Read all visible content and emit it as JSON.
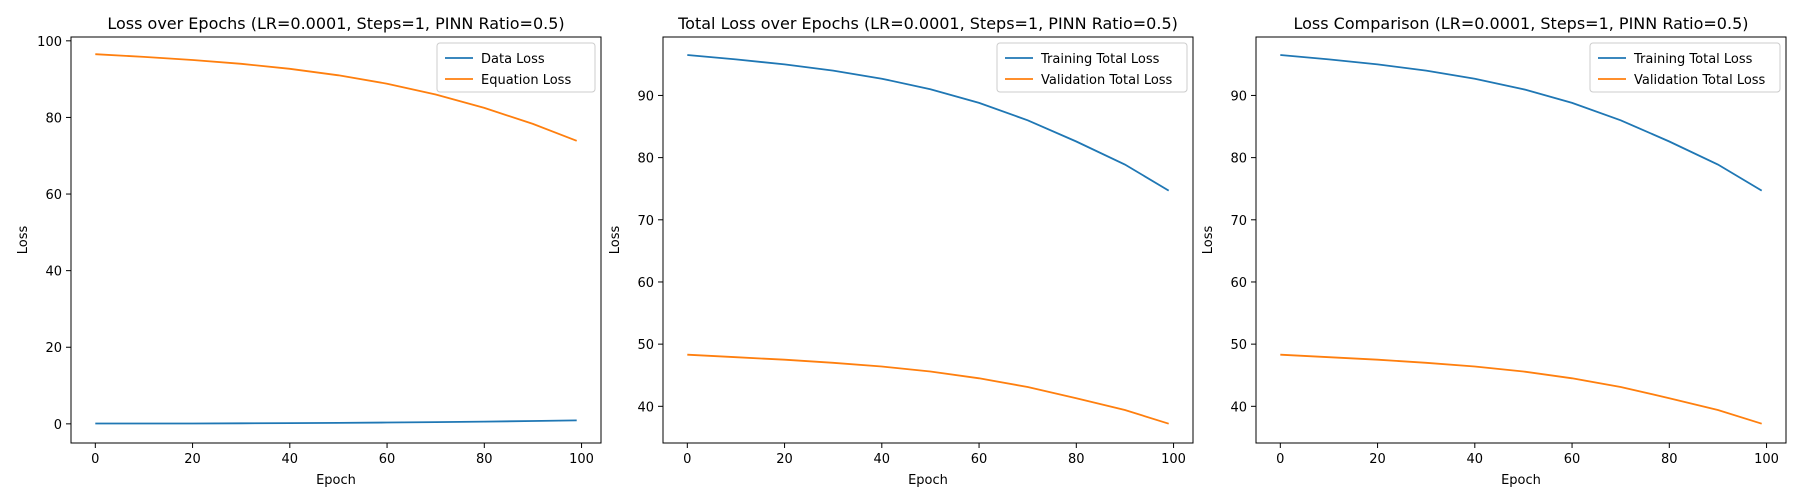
{
  "chart_data": [
    {
      "type": "line",
      "title": "Loss over Epochs (LR=0.0001, Steps=1, PINN Ratio=0.5)",
      "xlabel": "Epoch",
      "ylabel": "Loss",
      "xlim": [
        -5,
        104
      ],
      "ylim": [
        -5,
        101
      ],
      "xticks": [
        0,
        20,
        40,
        60,
        80,
        100
      ],
      "yticks": [
        0,
        20,
        40,
        60,
        80,
        100
      ],
      "legend": "top-right",
      "series": [
        {
          "name": "Data Loss",
          "color": "#1f77b4",
          "x": [
            0,
            10,
            20,
            30,
            40,
            50,
            60,
            70,
            80,
            90,
            99
          ],
          "y": [
            0.1,
            0.1,
            0.1,
            0.15,
            0.2,
            0.25,
            0.35,
            0.45,
            0.6,
            0.75,
            0.9
          ]
        },
        {
          "name": "Equation Loss",
          "color": "#ff7f0e",
          "x": [
            0,
            10,
            20,
            30,
            40,
            50,
            60,
            70,
            80,
            90,
            99
          ],
          "y": [
            96.5,
            95.8,
            95.0,
            94.0,
            92.7,
            91.0,
            88.8,
            86.0,
            82.5,
            78.3,
            73.9
          ]
        }
      ]
    },
    {
      "type": "line",
      "title": "Total Loss over Epochs (LR=0.0001, Steps=1, PINN Ratio=0.5)",
      "xlabel": "Epoch",
      "ylabel": "Loss",
      "xlim": [
        -5,
        104
      ],
      "ylim": [
        34.1,
        99.4
      ],
      "xticks": [
        0,
        20,
        40,
        60,
        80,
        100
      ],
      "yticks": [
        40,
        50,
        60,
        70,
        80,
        90
      ],
      "legend": "top-right",
      "series": [
        {
          "name": "Training Total Loss",
          "color": "#1f77b4",
          "x": [
            0,
            10,
            20,
            30,
            40,
            50,
            60,
            70,
            80,
            90,
            99
          ],
          "y": [
            96.5,
            95.8,
            95.0,
            94.0,
            92.7,
            91.0,
            88.8,
            86.0,
            82.6,
            78.9,
            74.7
          ]
        },
        {
          "name": "Validation Total Loss",
          "color": "#ff7f0e",
          "x": [
            0,
            10,
            20,
            30,
            40,
            50,
            60,
            70,
            80,
            90,
            99
          ],
          "y": [
            48.3,
            47.9,
            47.5,
            47.0,
            46.4,
            45.6,
            44.5,
            43.1,
            41.3,
            39.4,
            37.2
          ]
        }
      ]
    },
    {
      "type": "line",
      "title": "Loss Comparison (LR=0.0001, Steps=1, PINN Ratio=0.5)",
      "xlabel": "Epoch",
      "ylabel": "Loss",
      "xlim": [
        -5,
        104
      ],
      "ylim": [
        34.1,
        99.4
      ],
      "xticks": [
        0,
        20,
        40,
        60,
        80,
        100
      ],
      "yticks": [
        40,
        50,
        60,
        70,
        80,
        90
      ],
      "legend": "top-right",
      "series": [
        {
          "name": "Training Total Loss",
          "color": "#1f77b4",
          "x": [
            0,
            10,
            20,
            30,
            40,
            50,
            60,
            70,
            80,
            90,
            99
          ],
          "y": [
            96.5,
            95.8,
            95.0,
            94.0,
            92.7,
            91.0,
            88.8,
            86.0,
            82.6,
            78.9,
            74.7
          ]
        },
        {
          "name": "Validation Total Loss",
          "color": "#ff7f0e",
          "x": [
            0,
            10,
            20,
            30,
            40,
            50,
            60,
            70,
            80,
            90,
            99
          ],
          "y": [
            48.3,
            47.9,
            47.5,
            47.0,
            46.4,
            45.6,
            44.5,
            43.1,
            41.3,
            39.4,
            37.2
          ]
        }
      ]
    }
  ]
}
